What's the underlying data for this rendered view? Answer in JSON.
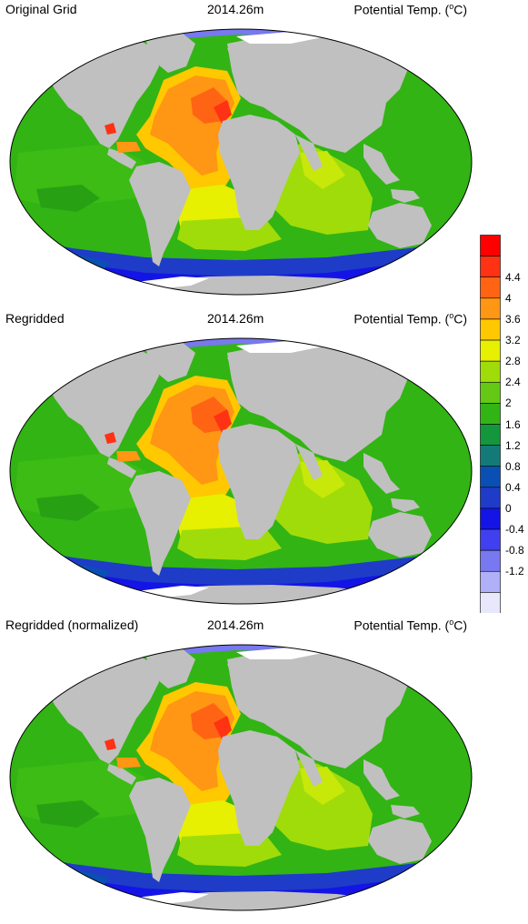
{
  "panels": [
    {
      "title": "Original Grid",
      "date": "2014.26m",
      "variable": "Potential Temp. (",
      "unit_sup": "o",
      "unit_rest": "C)"
    },
    {
      "title": "Regridded",
      "date": "2014.26m",
      "variable": "Potential Temp. (",
      "unit_sup": "o",
      "unit_rest": "C)"
    },
    {
      "title": "Regridded (normalized)",
      "date": "2014.26m",
      "variable": "Potential Temp. (",
      "unit_sup": "o",
      "unit_rest": "C)"
    }
  ],
  "colorbar": {
    "colors": [
      "#e8e8fc",
      "#b0b0f8",
      "#7878f0",
      "#4040f0",
      "#1414e6",
      "#1e3cc8",
      "#0a50b4",
      "#147a78",
      "#14963c",
      "#32b414",
      "#64c814",
      "#a0dc0a",
      "#e6f000",
      "#ffc800",
      "#ff9614",
      "#ff6414",
      "#ff3214",
      "#ff0000"
    ],
    "labels": [
      "4.4",
      "4",
      "3.6",
      "3.2",
      "2.8",
      "2.4",
      "2",
      "1.6",
      "1.2",
      "0.8",
      "0.4",
      "0",
      "-0.4",
      "-0.8",
      "-1.2"
    ]
  },
  "colors": {
    "land": "#c0c0c0",
    "ocean_green": "#32b414",
    "ice_white": "#ffffff"
  }
}
